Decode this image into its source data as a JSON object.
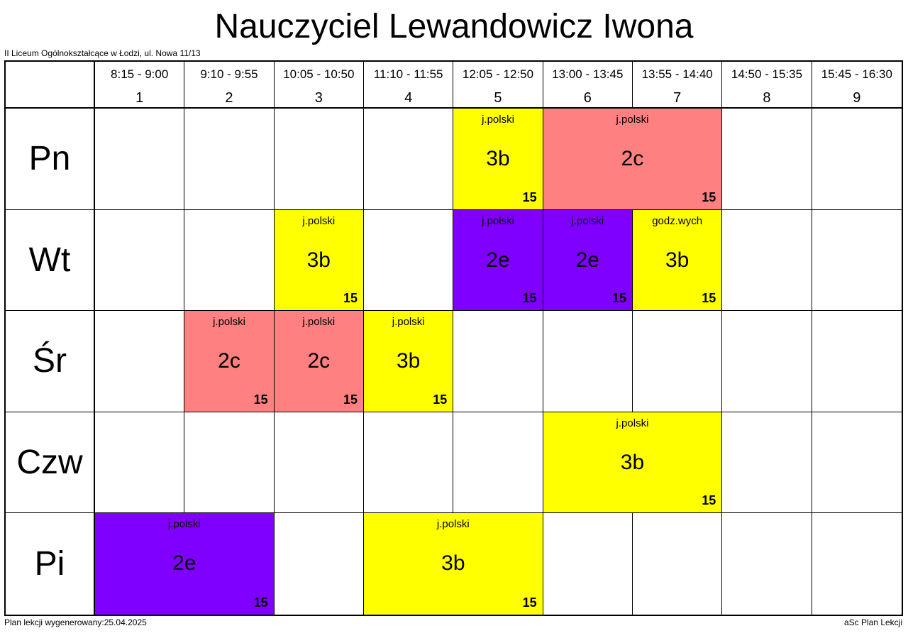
{
  "header": {
    "title": "Nauczyciel Lewandowicz Iwona",
    "school": "II Liceum Ogólnokształcące w Łodzi, ul. Nowa 11/13"
  },
  "periods": [
    {
      "time": "8:15 - 9:00",
      "number": "1"
    },
    {
      "time": "9:10 - 9:55",
      "number": "2"
    },
    {
      "time": "10:05 - 10:50",
      "number": "3"
    },
    {
      "time": "11:10 - 11:55",
      "number": "4"
    },
    {
      "time": "12:05 - 12:50",
      "number": "5"
    },
    {
      "time": "13:00 - 13:45",
      "number": "6"
    },
    {
      "time": "13:55 - 14:40",
      "number": "7"
    },
    {
      "time": "14:50 - 15:35",
      "number": "8"
    },
    {
      "time": "15:45 - 16:30",
      "number": "9"
    }
  ],
  "days": [
    {
      "name": "Pn",
      "cells": [
        null,
        null,
        null,
        null,
        {
          "subject": "j.polski",
          "class": "3b",
          "room": "15",
          "color": "#ffff00",
          "span": 1
        },
        {
          "subject": "j.polski",
          "class": "2c",
          "room": "15",
          "color": "#ff8080",
          "span": 2
        },
        null,
        null
      ]
    },
    {
      "name": "Wt",
      "cells": [
        null,
        null,
        {
          "subject": "j.polski",
          "class": "3b",
          "room": "15",
          "color": "#ffff00",
          "span": 1
        },
        null,
        {
          "subject": "j.polski",
          "class": "2e",
          "room": "15",
          "color": "#8000ff",
          "span": 1
        },
        {
          "subject": "j.polski",
          "class": "2e",
          "room": "15",
          "color": "#8000ff",
          "span": 1
        },
        {
          "subject": "godz.wych",
          "class": "3b",
          "room": "15",
          "color": "#ffff00",
          "span": 1
        },
        null,
        null
      ]
    },
    {
      "name": "Śr",
      "cells": [
        null,
        {
          "subject": "j.polski",
          "class": "2c",
          "room": "15",
          "color": "#ff8080",
          "span": 1
        },
        {
          "subject": "j.polski",
          "class": "2c",
          "room": "15",
          "color": "#ff8080",
          "span": 1
        },
        {
          "subject": "j.polski",
          "class": "3b",
          "room": "15",
          "color": "#ffff00",
          "span": 1
        },
        null,
        null,
        null,
        null,
        null
      ]
    },
    {
      "name": "Czw",
      "cells": [
        null,
        null,
        null,
        null,
        null,
        {
          "subject": "j.polski",
          "class": "3b",
          "room": "15",
          "color": "#ffff00",
          "span": 2
        },
        null,
        null
      ]
    },
    {
      "name": "Pi",
      "cells": [
        {
          "subject": "j.polski",
          "class": "2e",
          "room": "15",
          "color": "#8000ff",
          "span": 2
        },
        null,
        {
          "subject": "j.polski",
          "class": "3b",
          "room": "15",
          "color": "#ffff00",
          "span": 2
        },
        null,
        null,
        null,
        null
      ]
    }
  ],
  "footer": {
    "generated": "Plan lekcji wygenerowany:25.04.2025",
    "app": "aSc Plan Lekcji"
  }
}
